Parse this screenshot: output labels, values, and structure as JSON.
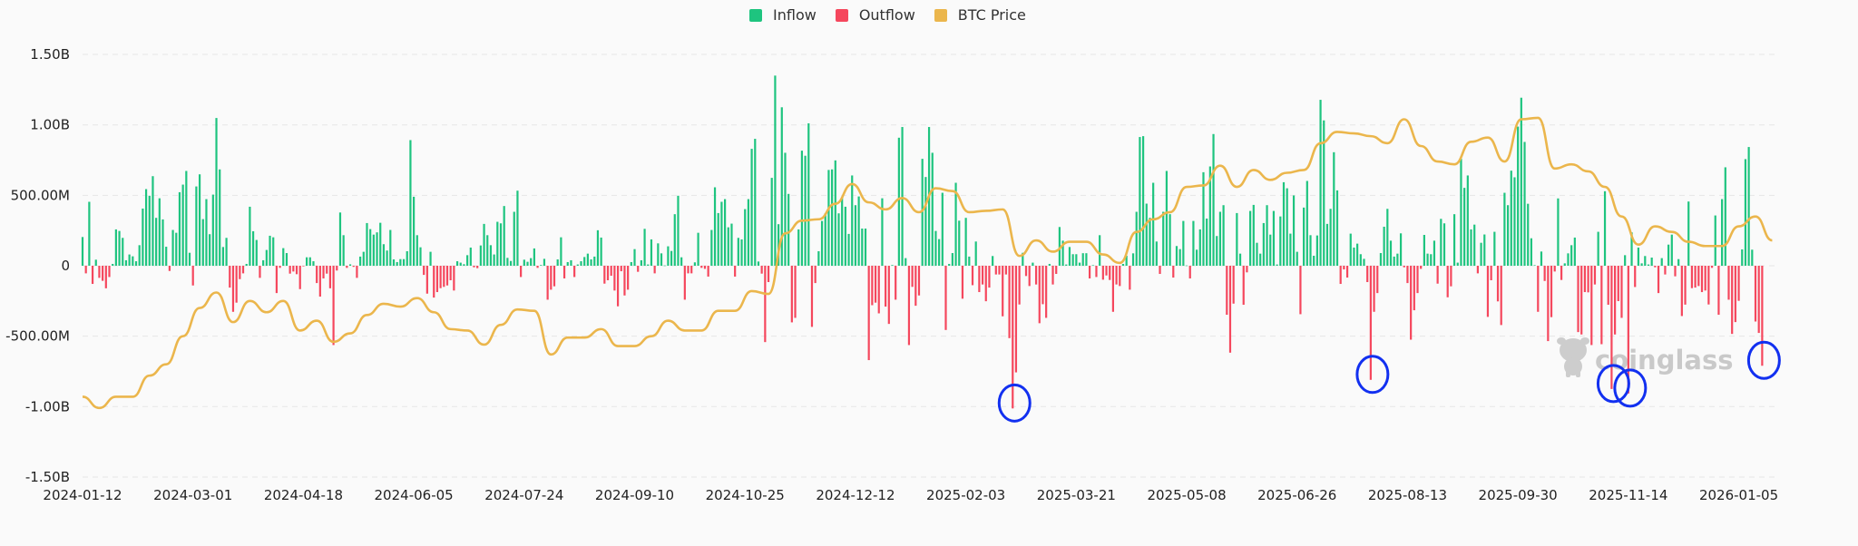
{
  "chart_data": {
    "type": "bar+line",
    "legend_position": "top",
    "legend": [
      {
        "label": "Inflow",
        "color": "#1ec47f"
      },
      {
        "label": "Outflow",
        "color": "#f5475d"
      },
      {
        "label": "BTC Price",
        "color": "#ebb64c"
      }
    ],
    "grid": true,
    "ylim": [
      -1500000000,
      1500000000
    ],
    "y_tick_values": [
      1500000000,
      1000000000,
      500000000,
      0,
      -500000000,
      -1000000000,
      -1500000000
    ],
    "y_tick_labels": [
      "1.50B",
      "1.00B",
      "500.00M",
      "0",
      "-500.00M",
      "-1.00B",
      "-1.50B"
    ],
    "x_tick_labels": [
      "2024-01-12",
      "2024-03-01",
      "2024-04-18",
      "2024-06-05",
      "2024-07-24",
      "2024-09-10",
      "2024-10-25",
      "2024-12-12",
      "2025-02-03",
      "2025-03-21",
      "2025-05-08",
      "2025-06-26",
      "2025-08-13",
      "2025-09-30",
      "2025-11-14",
      "2026-01-05"
    ],
    "flow_unit": "millions USD",
    "net_flows": [
      204,
      -54,
      454,
      -129,
      43,
      -86,
      -107,
      -160,
      -80,
      13,
      258,
      247,
      198,
      39,
      80,
      67,
      32,
      146,
      406,
      544,
      497,
      636,
      340,
      479,
      329,
      135,
      -37,
      254,
      234,
      522,
      576,
      673,
      92,
      -140,
      563,
      649,
      331,
      473,
      224,
      505,
      1049,
      684,
      133,
      198,
      -155,
      -327,
      -262,
      -95,
      -54,
      13,
      419,
      245,
      183,
      -86,
      39,
      112,
      213,
      202,
      -194,
      -15,
      125,
      90,
      -56,
      -41,
      -60,
      -166,
      -4,
      60,
      60,
      32,
      -123,
      -219,
      -90,
      -56,
      -160,
      -563,
      -34,
      378,
      217,
      -15,
      10,
      -8,
      -86,
      65,
      99,
      303,
      260,
      221,
      237,
      305,
      153,
      108,
      254,
      45,
      26,
      47,
      47,
      103,
      892,
      490,
      217,
      131,
      -65,
      -198,
      99,
      -226,
      -187,
      -159,
      -150,
      -140,
      -103,
      -176,
      32,
      22,
      11,
      75,
      129,
      -11,
      -17,
      144,
      297,
      217,
      146,
      80,
      312,
      301,
      424,
      56,
      34,
      383,
      533,
      -80,
      43,
      28,
      54,
      123,
      -15,
      5,
      49,
      -241,
      -170,
      -146,
      45,
      202,
      -90,
      26,
      39,
      -80,
      9,
      32,
      62,
      86,
      45,
      65,
      252,
      200,
      -127,
      -103,
      -71,
      -176,
      -288,
      -39,
      -211,
      -170,
      26,
      118,
      -43,
      39,
      262,
      9,
      187,
      -54,
      159,
      88,
      2,
      138,
      105,
      366,
      497,
      60,
      -241,
      -54,
      -54,
      24,
      234,
      -15,
      -22,
      -77,
      254,
      557,
      374,
      454,
      473,
      273,
      299,
      -77,
      198,
      187,
      402,
      473,
      830,
      901,
      30,
      -56,
      -542,
      -116,
      624,
      1350,
      295,
      1125,
      802,
      510,
      -402,
      -370,
      258,
      817,
      781,
      1011,
      -434,
      -123,
      103,
      318,
      372,
      680,
      684,
      748,
      372,
      490,
      419,
      226,
      641,
      430,
      492,
      264,
      264,
      -670,
      -280,
      -262,
      -338,
      479,
      -290,
      -413,
      5,
      -241,
      909,
      985,
      54,
      -563,
      -150,
      -284,
      -211,
      759,
      630,
      985,
      802,
      247,
      189,
      518,
      -456,
      13,
      90,
      589,
      320,
      -234,
      340,
      65,
      -138,
      172,
      -187,
      -133,
      -252,
      -155,
      69,
      -62,
      -62,
      -359,
      -62,
      -514,
      -1013,
      -757,
      -275,
      92,
      -73,
      -144,
      22,
      -133,
      -408,
      -273,
      -370,
      13,
      -133,
      -58,
      275,
      178,
      9,
      133,
      82,
      82,
      22,
      89,
      89,
      -90,
      4,
      -80,
      217,
      -99,
      -69,
      -101,
      -327,
      -133,
      -144,
      13,
      71,
      -170,
      88,
      383,
      914,
      920,
      441,
      340,
      589,
      172,
      -58,
      383,
      673,
      366,
      -84,
      140,
      118,
      318,
      2,
      -90,
      318,
      114,
      258,
      664,
      335,
      705,
      935,
      211,
      383,
      430,
      -348,
      -617,
      -269,
      374,
      86,
      -277,
      -47,
      389,
      432,
      163,
      86,
      303,
      430,
      221,
      389,
      9,
      350,
      593,
      550,
      228,
      499,
      99,
      -344,
      413,
      602,
      217,
      71,
      215,
      1178,
      1032,
      297,
      404,
      806,
      535,
      -129,
      -26,
      -84,
      228,
      129,
      157,
      82,
      49,
      -116,
      -810,
      -327,
      -194,
      90,
      277,
      404,
      178,
      65,
      86,
      230,
      -11,
      -123,
      -525,
      -316,
      -194,
      -22,
      219,
      86,
      82,
      178,
      -127,
      333,
      301,
      -224,
      -146,
      366,
      22,
      759,
      553,
      641,
      258,
      292,
      -54,
      163,
      222,
      -363,
      -103,
      241,
      -253,
      -421,
      518,
      430,
      675,
      628,
      988,
      1193,
      879,
      440,
      195,
      4,
      -327,
      101,
      -108,
      -535,
      -365,
      -41,
      478,
      -101,
      17,
      88,
      146,
      200,
      -471,
      -488,
      -187,
      -189,
      -563,
      -133,
      241,
      -557,
      529,
      -277,
      -875,
      -488,
      -251,
      -370,
      75,
      -907,
      237,
      -151,
      129,
      17,
      69,
      9,
      58,
      -11,
      -194,
      54,
      -62,
      150,
      221,
      -75,
      47,
      -357,
      -276,
      456,
      -159,
      -155,
      -144,
      -187,
      -176,
      -275,
      -15,
      357,
      -348,
      473,
      699,
      -241,
      -484,
      -400,
      -249,
      116,
      757,
      843,
      114,
      -396,
      -477,
      -710
    ],
    "btc_price_unit": "USD",
    "btc_price_axis_hidden_range": [
      20000,
      140000
    ],
    "btc_price": [
      42800,
      39600,
      42800,
      42800,
      48800,
      52000,
      60000,
      68000,
      72400,
      64000,
      70000,
      66800,
      70000,
      61600,
      64400,
      58400,
      60800,
      66000,
      69200,
      68400,
      70800,
      66800,
      62000,
      61600,
      57600,
      63200,
      67600,
      67200,
      54800,
      59600,
      59600,
      62000,
      57200,
      57200,
      60000,
      64400,
      61600,
      61600,
      67200,
      67200,
      72800,
      72000,
      89200,
      92800,
      93200,
      97600,
      103200,
      98000,
      96000,
      99200,
      95200,
      102000,
      101200,
      95200,
      95600,
      96000,
      82800,
      87200,
      84000,
      86800,
      86800,
      83200,
      80800,
      89600,
      93200,
      95200,
      102400,
      102800,
      108400,
      102400,
      107200,
      104400,
      106400,
      107200,
      114800,
      118000,
      117600,
      116800,
      114800,
      121600,
      114000,
      109600,
      108800,
      115200,
      116400,
      109600,
      121600,
      122000,
      107600,
      108800,
      106800,
      102400,
      94000,
      86000,
      91200,
      89600,
      86800,
      85600,
      85600,
      91200,
      94000,
      87200
    ],
    "annotations": {
      "circled_bar_indices": [
        278,
        385,
        457,
        462,
        502
      ],
      "color": "#1230f0"
    }
  },
  "watermark": {
    "text": "coinglass"
  }
}
